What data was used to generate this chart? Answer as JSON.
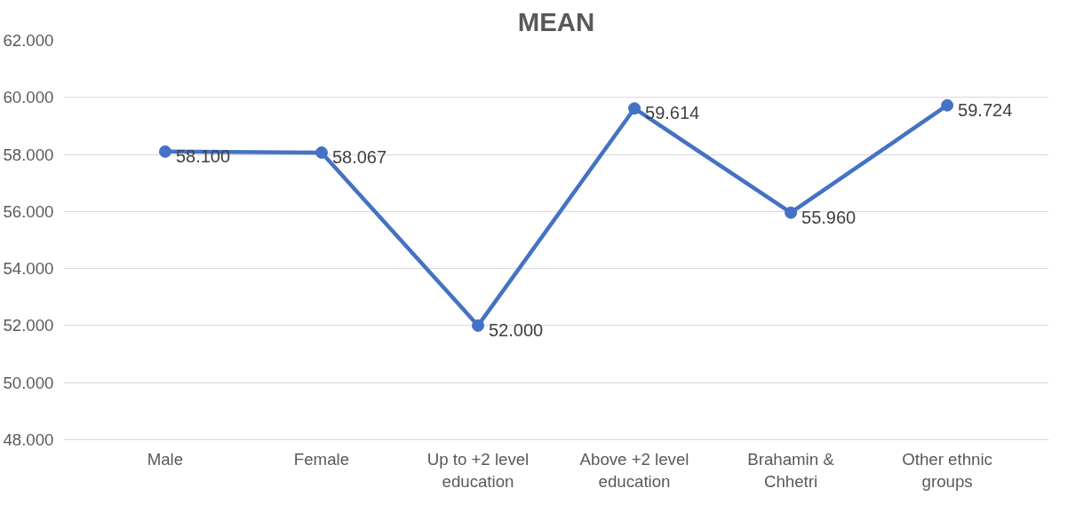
{
  "chart_data": {
    "type": "line",
    "title": "MEAN",
    "categories": [
      "Male",
      "Female",
      "Up to +2 level\neducation",
      "Above +2 level\neducation",
      "Brahamin &\nChhetri",
      "Other ethnic\ngroups"
    ],
    "series": [
      {
        "color": "#4472c4",
        "values": [
          58.1,
          58.067,
          52.0,
          59.614,
          55.96,
          59.724
        ]
      }
    ],
    "value_labels": [
      "58.100",
      "58.067",
      "52.000",
      "59.614",
      "55.960",
      "59.724"
    ],
    "ylim": [
      48,
      62
    ],
    "yticks": [
      {
        "value": 48,
        "label": "48.000"
      },
      {
        "value": 50,
        "label": "50.000"
      },
      {
        "value": 52,
        "label": "52.000"
      },
      {
        "value": 54,
        "label": "54.000"
      },
      {
        "value": 56,
        "label": "56.000"
      },
      {
        "value": 58,
        "label": "58.000"
      },
      {
        "value": 60,
        "label": "60.000"
      },
      {
        "value": 62,
        "label": "62.000"
      }
    ],
    "grid": "y",
    "marker": "circle",
    "line_style": "solid"
  }
}
